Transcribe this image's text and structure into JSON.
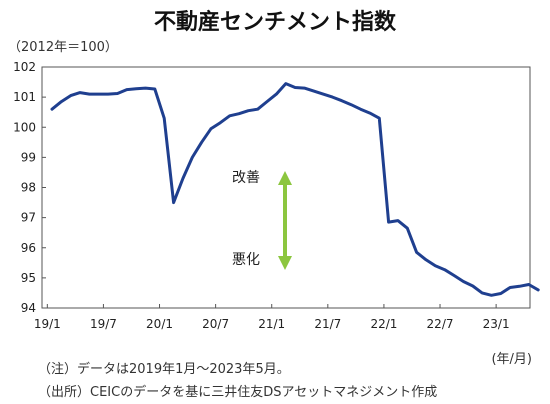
{
  "chart_data": {
    "type": "line",
    "title": "不動産センチメント指数",
    "unit_label": "（2012年＝100）",
    "x_unit_label": "(年/月)",
    "ylim": [
      94,
      102
    ],
    "y_ticks": [
      94,
      95,
      96,
      97,
      98,
      99,
      100,
      101,
      102
    ],
    "x_ticks": [
      "19/1",
      "19/7",
      "20/1",
      "20/7",
      "21/1",
      "21/7",
      "22/1",
      "22/7",
      "23/1"
    ],
    "grid": false,
    "series": [
      {
        "color": "#1f3f8f",
        "x": [
          "2019-01",
          "2019-02",
          "2019-03",
          "2019-04",
          "2019-05",
          "2019-06",
          "2019-07",
          "2019-08",
          "2019-09",
          "2019-10",
          "2019-11",
          "2019-12",
          "2020-01",
          "2020-02",
          "2020-03",
          "2020-04",
          "2020-05",
          "2020-06",
          "2020-07",
          "2020-08",
          "2020-09",
          "2020-10",
          "2020-11",
          "2020-12",
          "2021-01",
          "2021-02",
          "2021-03",
          "2021-04",
          "2021-05",
          "2021-06",
          "2021-07",
          "2021-08",
          "2021-09",
          "2021-10",
          "2021-11",
          "2021-12",
          "2022-01",
          "2022-02",
          "2022-03",
          "2022-04",
          "2022-05",
          "2022-06",
          "2022-07",
          "2022-08",
          "2022-09",
          "2022-10",
          "2022-11",
          "2022-12",
          "2023-01",
          "2023-02",
          "2023-03",
          "2023-04",
          "2023-05"
        ],
        "values": [
          100.6,
          100.85,
          101.05,
          101.15,
          101.1,
          101.1,
          101.1,
          101.12,
          101.25,
          101.28,
          101.3,
          101.27,
          100.3,
          97.5,
          98.3,
          99.0,
          99.5,
          99.95,
          100.15,
          100.38,
          100.45,
          100.55,
          100.6,
          100.85,
          101.1,
          101.45,
          101.32,
          101.3,
          101.2,
          101.1,
          101.0,
          100.88,
          100.75,
          100.6,
          100.47,
          100.3,
          96.85,
          96.9,
          96.65,
          95.85,
          95.6,
          95.4,
          95.27,
          95.08,
          94.88,
          94.73,
          94.5,
          94.42,
          94.48,
          94.68,
          94.72,
          94.78,
          94.6
        ]
      }
    ],
    "annotations": {
      "up_label": "改善",
      "down_label": "悪化",
      "arrow_color": "#8cc63f"
    }
  },
  "notes": {
    "note1": "（注）データは2019年1月～2023年5月。",
    "note2": "（出所）CEICのデータを基に三井住友DSアセットマネジメント作成"
  }
}
